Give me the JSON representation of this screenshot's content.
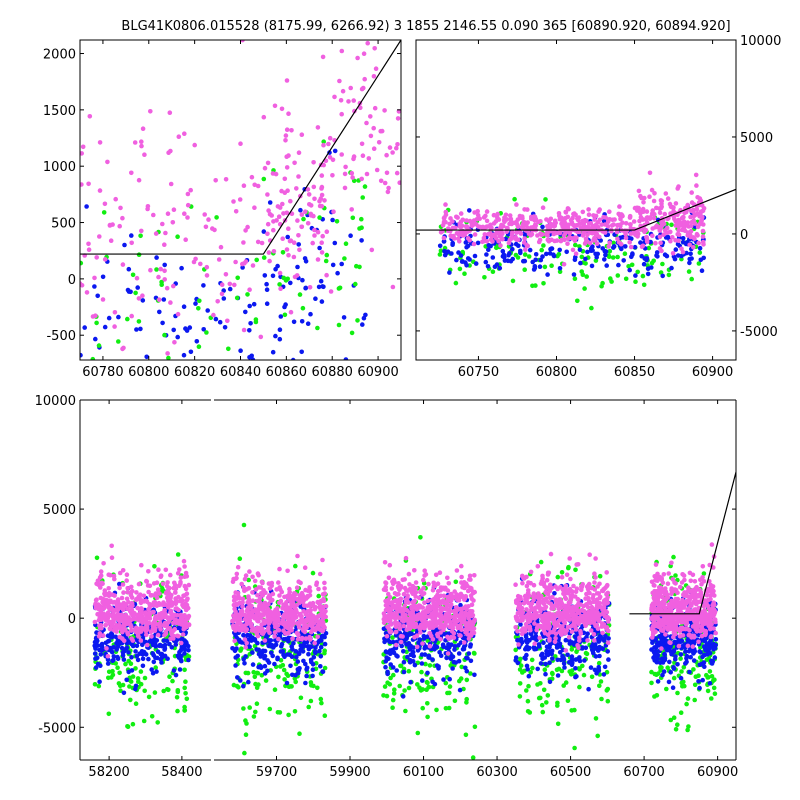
{
  "title": "BLG41K0806.015528 (8175.99, 6266.92)   3 1855 2146.55 0.090 365 [60890.920, 60894.920]",
  "colors": {
    "blue": "#0b18f0",
    "green": "#11ee11",
    "magenta": "#f060e0",
    "model": "#000000"
  },
  "chart_data": [
    {
      "type": "scatter",
      "panel": "top-left zoom",
      "xlim": [
        60770,
        60910
      ],
      "ylim": [
        -720,
        2120
      ],
      "xticks": [
        60780,
        60800,
        60820,
        60840,
        60860,
        60880,
        60900
      ],
      "yticks": [
        -500,
        0,
        500,
        1000,
        1500,
        2000
      ],
      "ytick_side": "left",
      "model_line": {
        "x": [
          60770,
          60850,
          60910
        ],
        "y": [
          220,
          220,
          2120
        ]
      },
      "series_density": {
        "magenta": [
          [
            60770,
            60850,
            140,
            350,
            650,
            1.0
          ],
          [
            60850,
            60880,
            110,
            600,
            380,
            1.3
          ],
          [
            60880,
            60910,
            70,
            1200,
            380,
            1.3
          ]
        ],
        "blue": [
          [
            60770,
            60850,
            70,
            -350,
            350,
            1.0
          ],
          [
            60850,
            60895,
            70,
            -50,
            500,
            1.0
          ]
        ],
        "green": [
          [
            60770,
            60850,
            40,
            -200,
            450,
            1.0
          ],
          [
            60850,
            60895,
            40,
            250,
            500,
            1.0
          ]
        ]
      }
    },
    {
      "type": "scatter",
      "panel": "top-right",
      "xlim": [
        60710,
        60915
      ],
      "ylim": [
        -6500,
        10000
      ],
      "xticks": [
        60750,
        60800,
        60850,
        60900
      ],
      "yticks": [
        -5000,
        0,
        5000,
        10000
      ],
      "ytick_side": "right",
      "model_line": {
        "x": [
          60710,
          60850,
          60915
        ],
        "y": [
          200,
          200,
          2300
        ]
      },
      "series_density": {
        "magenta": [
          [
            60725,
            60850,
            420,
            300,
            420,
            1.0
          ],
          [
            60850,
            60895,
            200,
            700,
            750,
            1.0
          ]
        ],
        "blue": [
          [
            60725,
            60895,
            260,
            -700,
            700,
            1.0
          ]
        ],
        "green": [
          [
            60725,
            60895,
            140,
            -1000,
            1100,
            1.0
          ]
        ]
      }
    },
    {
      "type": "scatter",
      "panel": "bottom full light curve",
      "ylim": [
        -6500,
        10000
      ],
      "yticks": [
        -5000,
        0,
        5000,
        10000
      ],
      "ytick_side": "left",
      "segments": [
        {
          "xlim": [
            58120,
            58480
          ],
          "xticks": [
            58200,
            58400
          ],
          "seasons": [
            [
              58160,
              58420
            ]
          ]
        },
        {
          "xlim": [
            59530,
            60950
          ],
          "xticks": [
            59700,
            59900,
            60100,
            60300,
            60500,
            60700,
            60900
          ],
          "seasons": [
            [
              59580,
              59835
            ],
            [
              59990,
              60240
            ],
            [
              60350,
              60605
            ],
            [
              60720,
              60895
            ]
          ]
        }
      ],
      "model_line": {
        "x": [
          60660,
          60850,
          60950
        ],
        "y": [
          200,
          200,
          6700
        ]
      },
      "series_density": {
        "magenta": [
          [
            0,
            0,
            0,
            200,
            550,
            1.0
          ]
        ],
        "blue": [
          [
            0,
            0,
            0,
            -900,
            850,
            1.0
          ]
        ],
        "green": [
          [
            0,
            0,
            0,
            -1500,
            1600,
            1.0
          ]
        ]
      }
    }
  ]
}
